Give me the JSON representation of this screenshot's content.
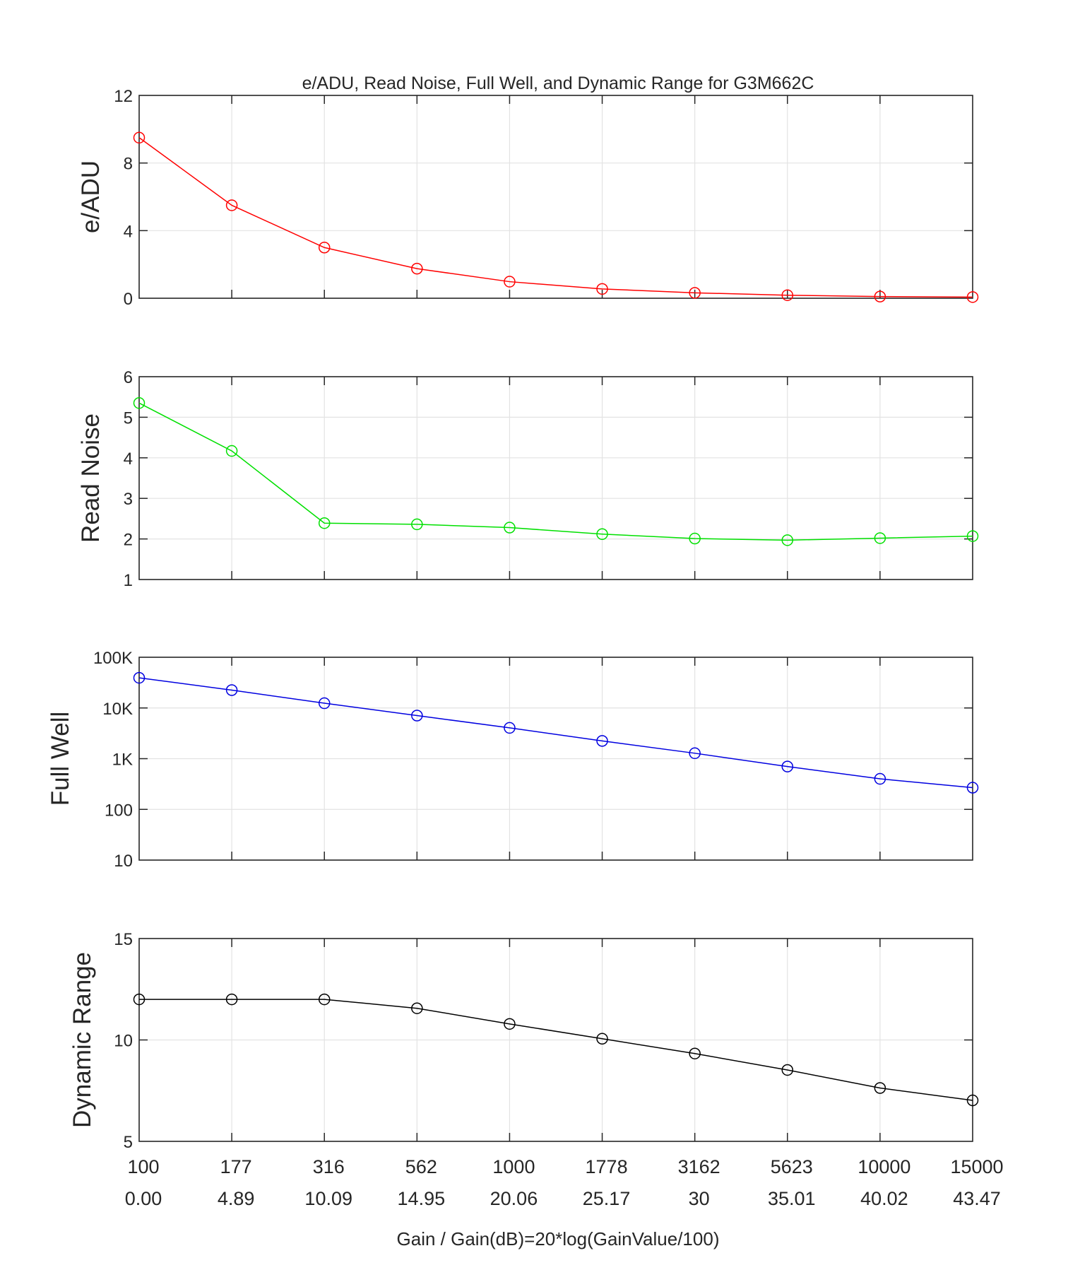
{
  "chart_data": {
    "title": "e/ADU, Read Noise, Full Well, and Dynamic Range for G3M662C",
    "xlabel": "Gain / Gain(dB)=20*log(GainValue/100)",
    "x_tick_labels_gain": [
      "100",
      "177",
      "316",
      "562",
      "1000",
      "1778",
      "3162",
      "5623",
      "10000",
      "15000"
    ],
    "x_tick_labels_db": [
      "0.00",
      "4.89",
      "10.09",
      "14.95",
      "20.06",
      "25.17",
      "30",
      "35.01",
      "40.02",
      "43.47"
    ],
    "grid": true,
    "subplots": [
      {
        "type": "line",
        "ylabel": "e/ADU",
        "color": "#ff0000",
        "scale": "linear",
        "ylim": [
          0,
          12
        ],
        "yticks": [
          0,
          4,
          8,
          12
        ],
        "ytick_labels": [
          "0",
          "4",
          "8",
          "12"
        ],
        "values": [
          9.5,
          5.5,
          3.0,
          1.75,
          0.98,
          0.55,
          0.32,
          0.18,
          0.1,
          0.07
        ]
      },
      {
        "type": "line",
        "ylabel": "Read Noise",
        "color": "#00e000",
        "scale": "linear",
        "ylim": [
          1,
          6
        ],
        "yticks": [
          1,
          2,
          3,
          4,
          5,
          6
        ],
        "ytick_labels": [
          "1",
          "2",
          "3",
          "4",
          "5",
          "6"
        ],
        "values": [
          5.35,
          4.17,
          2.39,
          2.36,
          2.28,
          2.12,
          2.01,
          1.97,
          2.02,
          2.07
        ]
      },
      {
        "type": "line",
        "ylabel": "Full Well",
        "color": "#0000e0",
        "scale": "log",
        "ylim": [
          10,
          100000
        ],
        "yticks": [
          10,
          100,
          1000,
          10000,
          100000
        ],
        "ytick_labels": [
          "10",
          "100",
          "1K",
          "10K",
          "100K"
        ],
        "values": [
          39300,
          22500,
          12400,
          7080,
          4050,
          2240,
          1280,
          700,
          400,
          268
        ]
      },
      {
        "type": "line",
        "ylabel": "Dynamic Range",
        "color": "#000000",
        "scale": "linear",
        "ylim": [
          5,
          15
        ],
        "yticks": [
          5,
          10,
          15
        ],
        "ytick_labels": [
          "5",
          "10",
          "15"
        ],
        "values": [
          12.0,
          12.0,
          12.0,
          11.56,
          10.79,
          10.06,
          9.33,
          8.52,
          7.63,
          7.02
        ]
      }
    ]
  }
}
